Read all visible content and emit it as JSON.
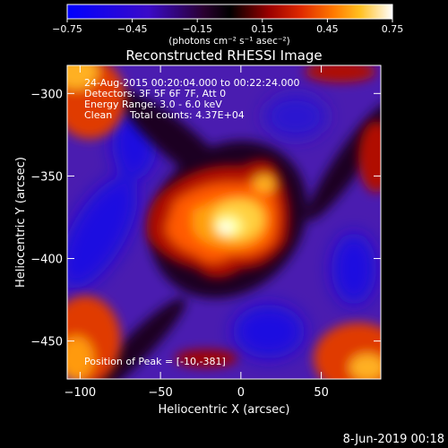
{
  "chart_data": {
    "type": "heatmap",
    "title": "Reconstructed RHESSI Image",
    "xlabel": "Heliocentric X (arcsec)",
    "ylabel": "Heliocentric Y (arcsec)",
    "xlim": [
      -108,
      87
    ],
    "ylim": [
      -473,
      -283
    ],
    "x_ticks": [
      -100,
      -50,
      0,
      50
    ],
    "y_ticks": [
      -300,
      -350,
      -400,
      -450
    ],
    "colorbar": {
      "min": -0.75,
      "max": 0.75,
      "ticks": [
        "-0.75",
        "-0.45",
        "-0.15",
        "0.15",
        "0.45",
        "0.75"
      ],
      "unit_label": "(photons cm⁻² s⁻¹ asec⁻²)"
    },
    "annotations": {
      "time": "24-Aug-2015 00:20:04.000 to 00:22:24.000",
      "detectors": "Detectors: 3F 5F 6F 7F, Att 0",
      "energy": "Energy Range: 3.0 - 6.0 keV",
      "method": "Clean",
      "counts": "Total counts: 4.37E+04",
      "peak": "Position of Peak = [-10,-381]"
    },
    "peak": {
      "x": -10,
      "y": -381
    },
    "colormap": [
      "#0000ff",
      "#3a0ac8",
      "#5b1a90",
      "#3a0040",
      "#000000",
      "#7a0000",
      "#d21a00",
      "#ff6a00",
      "#ffc020",
      "#ffff80",
      "#ffffff"
    ]
  },
  "footer": {
    "date": "8-Jun-2019 00:18"
  }
}
